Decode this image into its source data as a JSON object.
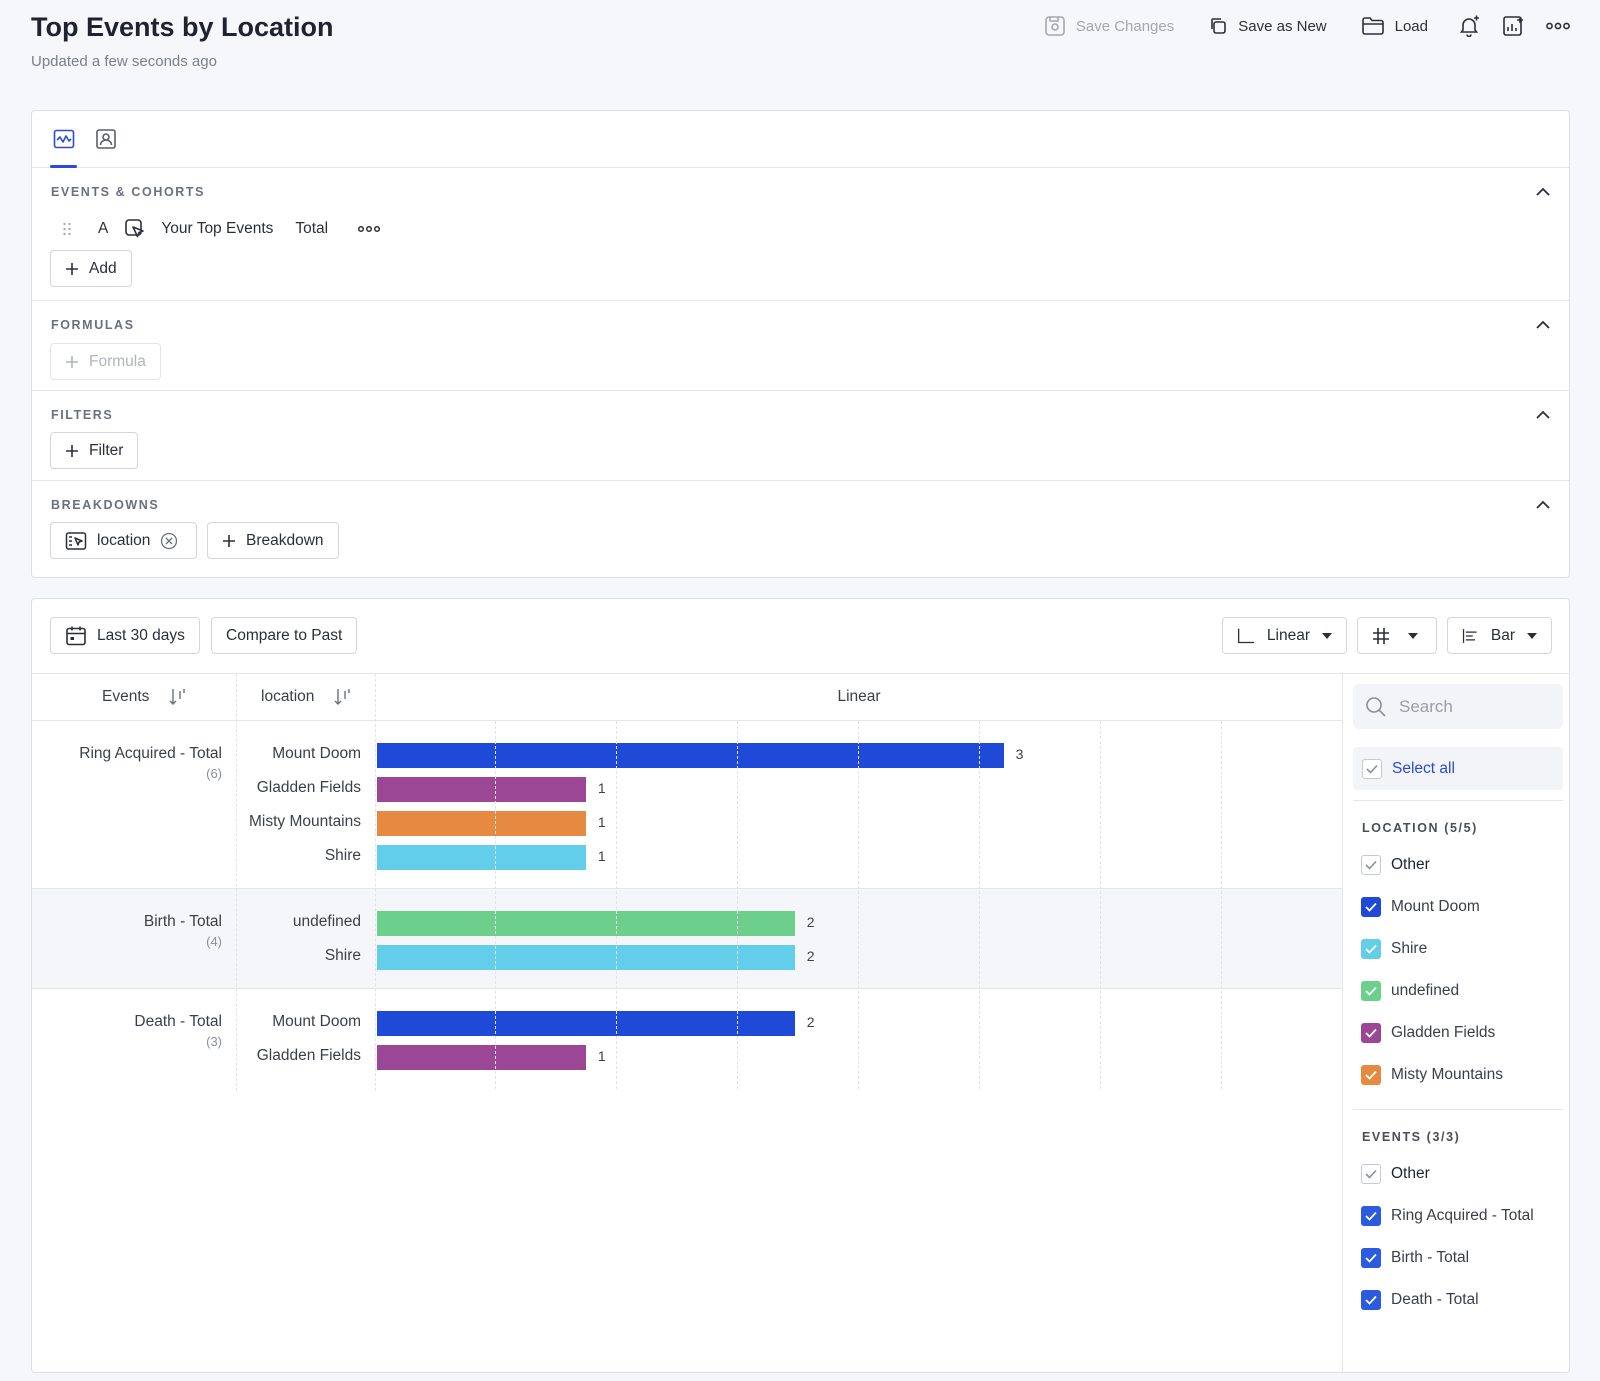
{
  "header": {
    "title": "Top Events by Location",
    "subtitle": "Updated a few seconds ago",
    "actions": {
      "save_changes": "Save Changes",
      "save_as_new": "Save as New",
      "load": "Load"
    }
  },
  "query": {
    "sections": {
      "events": "EVENTS & COHORTS",
      "formulas": "FORMULAS",
      "filters": "FILTERS",
      "breakdowns": "BREAKDOWNS"
    },
    "event_row": {
      "letter": "A",
      "name": "Your Top Events",
      "measure": "Total"
    },
    "add_label": "Add",
    "formula_label": "Formula",
    "filter_label": "Filter",
    "breakdown_chip": "location",
    "breakdown_label": "Breakdown"
  },
  "controls": {
    "date_range": "Last 30 days",
    "compare": "Compare to Past",
    "scale": "Linear",
    "chart_type": "Bar"
  },
  "table": {
    "col_events": "Events",
    "col_location": "location",
    "col_chart": "Linear"
  },
  "chart_data": {
    "type": "bar",
    "orientation": "horizontal",
    "scale": "linear",
    "xlim": [
      0,
      3.7
    ],
    "groups": [
      {
        "event": "Ring Acquired - Total",
        "count": "(6)",
        "rows": [
          {
            "location": "Mount Doom",
            "value": 3,
            "color": "#1f4ad8"
          },
          {
            "location": "Gladden Fields",
            "value": 1,
            "color": "#9b4796"
          },
          {
            "location": "Misty Mountains",
            "value": 1,
            "color": "#e58a40"
          },
          {
            "location": "Shire",
            "value": 1,
            "color": "#63ceea"
          }
        ]
      },
      {
        "event": "Birth - Total",
        "count": "(4)",
        "rows": [
          {
            "location": "undefined",
            "value": 2,
            "color": "#6ccf8c"
          },
          {
            "location": "Shire",
            "value": 2,
            "color": "#63ceea"
          }
        ]
      },
      {
        "event": "Death - Total",
        "count": "(3)",
        "rows": [
          {
            "location": "Mount Doom",
            "value": 2,
            "color": "#1f4ad8"
          },
          {
            "location": "Gladden Fields",
            "value": 1,
            "color": "#9b4796"
          }
        ]
      }
    ]
  },
  "legend": {
    "search_placeholder": "Search",
    "select_all": "Select all",
    "location_title": "LOCATION (5/5)",
    "location_items": [
      {
        "label": "Other",
        "color": "",
        "checked": "partial"
      },
      {
        "label": "Mount Doom",
        "color": "#1f4ad8",
        "checked": "true"
      },
      {
        "label": "Shire",
        "color": "#63ceea",
        "checked": "true"
      },
      {
        "label": "undefined",
        "color": "#6ccf8c",
        "checked": "true"
      },
      {
        "label": "Gladden Fields",
        "color": "#9b4796",
        "checked": "true"
      },
      {
        "label": "Misty Mountains",
        "color": "#e58a40",
        "checked": "true"
      }
    ],
    "events_title": "EVENTS (3/3)",
    "event_items": [
      {
        "label": "Other",
        "color": "",
        "checked": "partial"
      },
      {
        "label": "Ring Acquired - Total",
        "color": "#2a5be0",
        "checked": "true"
      },
      {
        "label": "Birth - Total",
        "color": "#2a5be0",
        "checked": "true"
      },
      {
        "label": "Death - Total",
        "color": "#2a5be0",
        "checked": "true"
      }
    ]
  }
}
